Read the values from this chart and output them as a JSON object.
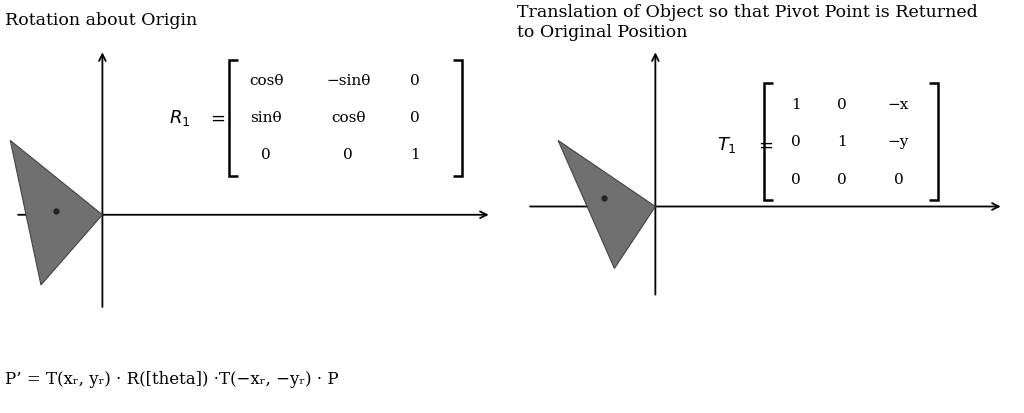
{
  "bg_color": "#ffffff",
  "left_title": "Rotation about Origin",
  "right_title": "Translation of Object so that Pivot Point is Returned\nto Original Position",
  "triangle_color": "#707070",
  "pivot_dot_color": "#222222",
  "left_matrix_rows": [
    [
      "cosθ",
      "−sinθ",
      "0"
    ],
    [
      "sinθ",
      "cosθ",
      "0"
    ],
    [
      "0",
      "0",
      "1"
    ]
  ],
  "right_matrix_rows": [
    [
      "1",
      "0",
      "−x"
    ],
    [
      "0",
      "1",
      "−y"
    ],
    [
      "0",
      "0",
      "0"
    ]
  ]
}
